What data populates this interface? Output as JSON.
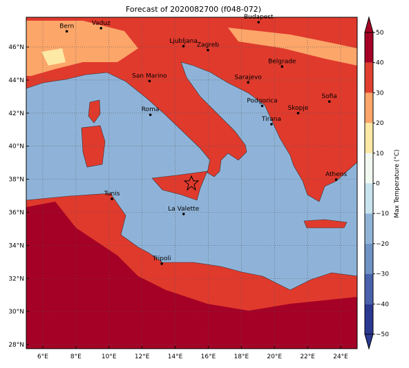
{
  "title": "Forecast of 2020082700 (f048-072)",
  "map": {
    "xlim": [
      5,
      25
    ],
    "ylim": [
      27.75,
      47.8
    ],
    "grid": true,
    "xticks": [
      {
        "value": 6,
        "label": "6°E"
      },
      {
        "value": 8,
        "label": "8°E"
      },
      {
        "value": 10,
        "label": "10°E"
      },
      {
        "value": 12,
        "label": "12°E"
      },
      {
        "value": 14,
        "label": "14°E"
      },
      {
        "value": 16,
        "label": "16°E"
      },
      {
        "value": 18,
        "label": "18°E"
      },
      {
        "value": 20,
        "label": "20°E"
      },
      {
        "value": 22,
        "label": "22°E"
      },
      {
        "value": 24,
        "label": "24°E"
      }
    ],
    "yticks": [
      {
        "value": 28,
        "label": "28°N"
      },
      {
        "value": 30,
        "label": "30°N"
      },
      {
        "value": 32,
        "label": "32°N"
      },
      {
        "value": 34,
        "label": "34°N"
      },
      {
        "value": 36,
        "label": "36°N"
      },
      {
        "value": 38,
        "label": "38°N"
      },
      {
        "value": 40,
        "label": "40°N"
      },
      {
        "value": 42,
        "label": "42°N"
      },
      {
        "value": 44,
        "label": "44°N"
      },
      {
        "value": 46,
        "label": "46°N"
      }
    ],
    "cities": [
      "Bern",
      "Vaduz",
      "Budapest",
      "Ljubljana",
      "Zagreb",
      "Belgrade",
      "San Marino",
      "Sarajevo",
      "Podgorica",
      "Sofia",
      "Roma",
      "Skopje",
      "Tirana",
      "Athens",
      "Tunis",
      "La Valette",
      "Tripoli"
    ]
  },
  "colorbar": {
    "label": "Max Temperature (°C)",
    "ticks": [
      {
        "value": -50,
        "label": "−50"
      },
      {
        "value": -40,
        "label": "−40"
      },
      {
        "value": -30,
        "label": "−30"
      },
      {
        "value": -20,
        "label": "−20"
      },
      {
        "value": -10,
        "label": "−10"
      },
      0,
      10,
      20,
      30,
      40,
      50
    ],
    "colors": [
      "#2b3990",
      "#4a62ab",
      "#6e93c4",
      "#91b4d6",
      "#c8e3ee",
      "#f2f9f0",
      "#fde9a6",
      "#fca66a",
      "#e0402f",
      "#a50026"
    ]
  }
}
